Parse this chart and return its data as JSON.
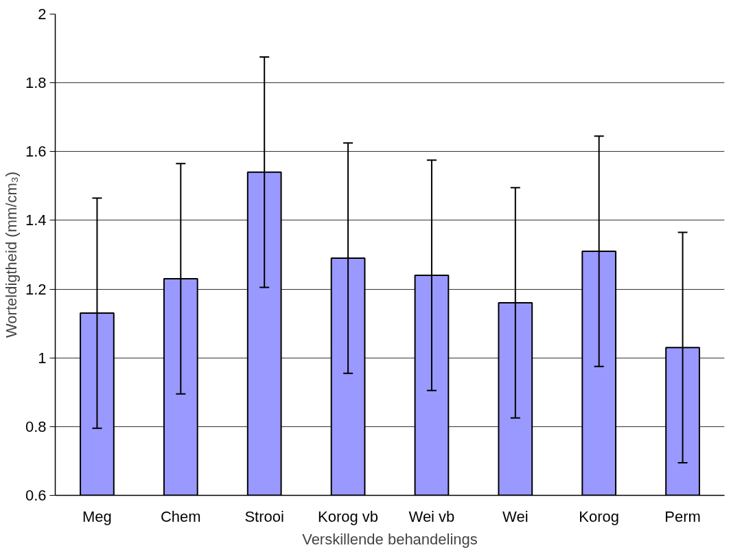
{
  "chart_data": {
    "type": "bar",
    "xlabel": "Verskillende behandelings",
    "ylabel": "Worteldigtheid (mm/cm₃)",
    "categories": [
      "Meg",
      "Chem",
      "Strooi",
      "Korog vb",
      "Wei vb",
      "Wei",
      "Korog",
      "Perm"
    ],
    "values": [
      1.13,
      1.23,
      1.54,
      1.29,
      1.24,
      1.16,
      1.31,
      1.03
    ],
    "errors": [
      0.335,
      0.335,
      0.335,
      0.335,
      0.335,
      0.335,
      0.335,
      0.335
    ],
    "color": "#9999ff",
    "ylim": [
      0.6,
      2
    ],
    "yticks": [
      0.6,
      0.8,
      1,
      1.2,
      1.4,
      1.6,
      1.8,
      2
    ],
    "grid": "y"
  }
}
